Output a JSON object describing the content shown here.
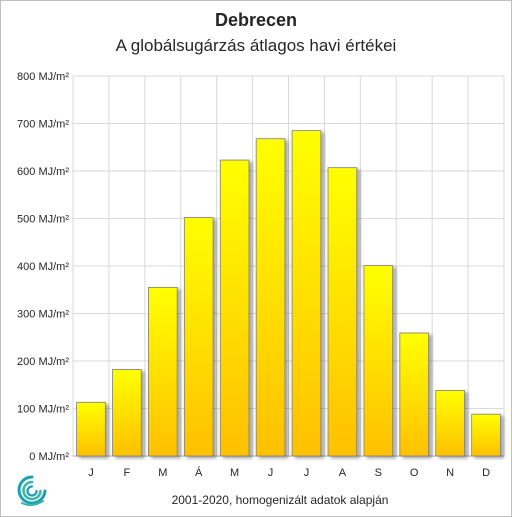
{
  "chart_data": {
    "type": "bar",
    "title": "Debrecen",
    "subtitle": "A globálsugárzás átlagos havi értékei",
    "categories": [
      "J",
      "F",
      "M",
      "Á",
      "M",
      "J",
      "J",
      "A",
      "S",
      "O",
      "N",
      "D"
    ],
    "values": [
      113,
      182,
      355,
      502,
      623,
      668,
      685,
      607,
      401,
      259,
      138,
      88
    ],
    "unit": "MJ/m²",
    "ylim": [
      0,
      800
    ],
    "yticks": [
      "0 MJ/m²",
      "100 MJ/m²",
      "200 MJ/m²",
      "300 MJ/m²",
      "400 MJ/m²",
      "500 MJ/m²",
      "600 MJ/m²",
      "700 MJ/m²",
      "800 MJ/m²"
    ],
    "grid": true,
    "bar_color_top": "#ffff00",
    "bar_color_bottom": "#ffc000",
    "footnote": "2001-2020,  homogenizált adatok alapján"
  }
}
